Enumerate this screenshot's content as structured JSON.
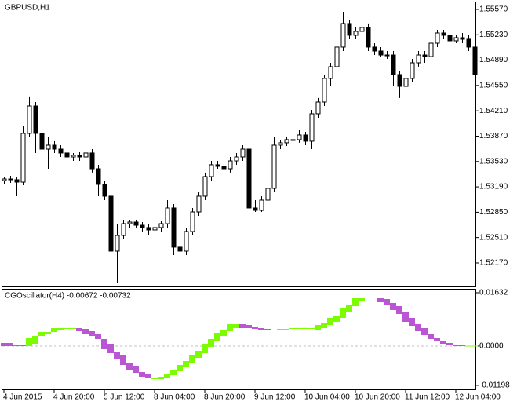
{
  "chart_data": [
    {
      "type": "candlestick",
      "title": "GBPUSD,H1",
      "ylim": [
        1.51854,
        1.55675
      ],
      "yticks": [
        {
          "value": 1.5557,
          "label": "1.55570"
        },
        {
          "value": 1.5523,
          "label": "1.55230"
        },
        {
          "value": 1.5489,
          "label": "1.54890"
        },
        {
          "value": 1.5455,
          "label": "1.54550"
        },
        {
          "value": 1.5421,
          "label": "1.54210"
        },
        {
          "value": 1.5387,
          "label": "1.53870"
        },
        {
          "value": 1.5353,
          "label": "1.53530"
        },
        {
          "value": 1.5319,
          "label": "1.53190"
        },
        {
          "value": 1.5285,
          "label": "1.52850"
        },
        {
          "value": 1.5251,
          "label": "1.52510"
        },
        {
          "value": 1.5217,
          "label": "1.52170"
        }
      ],
      "up_color": "#ffffff",
      "down_color": "#000000",
      "line_color": "#000000",
      "open": [
        1.53275,
        1.53296,
        1.53286,
        1.53254,
        1.53907,
        1.54275,
        1.53907,
        1.53696,
        1.53749,
        1.53696,
        1.53644,
        1.53591,
        1.53612,
        1.53591,
        1.53644,
        1.53433,
        1.53223,
        1.53065,
        1.52328,
        1.52538,
        1.52696,
        1.52717,
        1.52675,
        1.52644,
        1.52612,
        1.52644,
        1.52696,
        1.52907,
        1.52381,
        1.52328,
        1.52591,
        1.52854,
        1.53065,
        1.53328,
        1.53486,
        1.53465,
        1.53433,
        1.53538,
        1.53591,
        1.53696,
        1.52907,
        1.52875,
        1.53012,
        1.5317,
        1.53749,
        1.53781,
        1.53823,
        1.53823,
        1.53886,
        1.53802,
        1.5417,
        1.54328,
        1.54644,
        1.54802,
        1.55065,
        1.55381,
        1.55223,
        1.55275,
        1.55328,
        1.55065,
        1.55012,
        1.54959,
        1.54959,
        1.54696,
        1.54538,
        1.54644,
        1.54854,
        1.54959,
        1.54938,
        1.55117,
        1.55254,
        1.55223,
        1.55149,
        1.55191,
        1.5517,
        1.55065
      ],
      "high": [
        1.53328,
        1.53338,
        1.53328,
        1.54012,
        1.54402,
        1.54328,
        1.53959,
        1.53854,
        1.53802,
        1.53749,
        1.53696,
        1.53644,
        1.53654,
        1.53696,
        1.53696,
        1.53486,
        1.53275,
        1.53433,
        1.52696,
        1.52749,
        1.52749,
        1.52749,
        1.52717,
        1.52696,
        1.52696,
        1.52728,
        1.53012,
        1.52959,
        1.52538,
        1.52644,
        1.52907,
        1.53117,
        1.53381,
        1.53538,
        1.53538,
        1.53507,
        1.53591,
        1.53644,
        1.53749,
        1.53749,
        1.53012,
        1.53065,
        1.53223,
        1.53854,
        1.53823,
        1.53854,
        1.53886,
        1.53959,
        1.53928,
        1.54223,
        1.54381,
        1.54696,
        1.54854,
        1.55117,
        1.55538,
        1.55433,
        1.55328,
        1.55381,
        1.55381,
        1.55117,
        1.55065,
        1.55012,
        1.55012,
        1.54749,
        1.54696,
        1.54907,
        1.55012,
        1.55012,
        1.5517,
        1.55296,
        1.55296,
        1.55275,
        1.55223,
        1.55254,
        1.55223,
        1.55117
      ],
      "low": [
        1.53223,
        1.53244,
        1.53065,
        1.53212,
        1.53854,
        1.53644,
        1.53644,
        1.53433,
        1.53644,
        1.53591,
        1.53538,
        1.53538,
        1.53538,
        1.53538,
        1.53381,
        1.53065,
        1.53012,
        1.52065,
        1.51907,
        1.52486,
        1.52644,
        1.52644,
        1.52591,
        1.52538,
        1.52591,
        1.52591,
        1.52644,
        1.52275,
        1.52223,
        1.52275,
        1.52538,
        1.52802,
        1.53012,
        1.53275,
        1.53433,
        1.53381,
        1.53381,
        1.53486,
        1.53538,
        1.52696,
        1.52854,
        1.52854,
        1.52591,
        1.53117,
        1.53696,
        1.53738,
        1.53781,
        1.53781,
        1.53749,
        1.53696,
        1.54117,
        1.54275,
        1.54538,
        1.54696,
        1.55012,
        1.5517,
        1.5517,
        1.55223,
        1.55012,
        1.54959,
        1.54938,
        1.54907,
        1.54538,
        1.54381,
        1.54275,
        1.54591,
        1.54802,
        1.54854,
        1.54907,
        1.55065,
        1.5517,
        1.55117,
        1.55117,
        1.55117,
        1.55012,
        1.54644
      ],
      "close": [
        1.53296,
        1.53286,
        1.53254,
        1.53907,
        1.54275,
        1.53907,
        1.53696,
        1.53749,
        1.53696,
        1.53644,
        1.53591,
        1.53612,
        1.53591,
        1.53644,
        1.53433,
        1.53223,
        1.53065,
        1.52328,
        1.52538,
        1.52696,
        1.52717,
        1.52675,
        1.52644,
        1.52612,
        1.52644,
        1.52696,
        1.52907,
        1.52381,
        1.52328,
        1.52591,
        1.52854,
        1.53065,
        1.53328,
        1.53486,
        1.53465,
        1.53433,
        1.53538,
        1.53591,
        1.53696,
        1.52907,
        1.52875,
        1.53012,
        1.5317,
        1.53749,
        1.53781,
        1.53823,
        1.53823,
        1.53886,
        1.53802,
        1.5417,
        1.54328,
        1.54644,
        1.54802,
        1.55065,
        1.55381,
        1.55223,
        1.55275,
        1.55328,
        1.55065,
        1.55012,
        1.54959,
        1.54959,
        1.54696,
        1.54538,
        1.54644,
        1.54854,
        1.54959,
        1.54938,
        1.55117,
        1.55254,
        1.55223,
        1.55149,
        1.55191,
        1.5517,
        1.55065,
        1.54696
      ]
    },
    {
      "type": "band",
      "title": "CGOscillator(H4) -0.00672 -0.00732",
      "ylim": [
        -0.0132,
        0.01752
      ],
      "yticks": [
        0.01632,
        {
          "value": 0,
          "label": "0.0000"
        },
        -0.01198
      ],
      "zero_line": true,
      "zero_color": "#c0c0c0",
      "up_color": "#7cfc00",
      "down_color": "#ba55d3",
      "categories": [
        "4 Jun 2015",
        null,
        null,
        null,
        null,
        null,
        null,
        null,
        "4 Jun 20:00",
        null,
        null,
        null,
        null,
        null,
        null,
        null,
        "5 Jun 12:00",
        null,
        null,
        null,
        null,
        null,
        null,
        null,
        "8 Jun 04:00",
        null,
        null,
        null,
        null,
        null,
        null,
        null,
        "8 Jun 20:00",
        null,
        null,
        null,
        null,
        null,
        null,
        null,
        "9 Jun 12:00",
        null,
        null,
        null,
        null,
        null,
        null,
        null,
        "10 Jun 04:00",
        null,
        null,
        null,
        null,
        null,
        null,
        null,
        "10 Jun 20:00",
        null,
        null,
        null,
        null,
        null,
        null,
        null,
        "11 Jun 12:00",
        null,
        null,
        null,
        null,
        null,
        null,
        null,
        "12 Jun 04:00",
        null,
        null,
        null
      ],
      "series": [
        {
          "values": [
            0,
            0,
            0,
            0,
            0.00264,
            0.00312,
            0.00432,
            0.00432,
            0.00552,
            0.00552,
            0.00552,
            0.00552,
            0.00456,
            0.00384,
            0.00312,
            0.00216,
            -0.00096,
            -0.00216,
            -0.00408,
            -0.00576,
            -0.00744,
            -0.00816,
            -0.00936,
            -0.00984,
            -0.0096,
            -0.00936,
            -0.0084,
            -0.00744,
            -0.00576,
            -0.00456,
            -0.00264,
            -0.00144,
            0.00072,
            0.00216,
            0.00408,
            0.00504,
            0.00672,
            0.00672,
            0.00552,
            0.00552,
            0.00528,
            0.00504,
            0.0048,
            0.00504,
            0.00528,
            0.00528,
            0.00552,
            0.00552,
            0.00552,
            0.00552,
            0.00648,
            0.00696,
            0.00864,
            0.00936,
            0.01176,
            0.01272,
            0.01464,
            0.01464,
            0.01464,
            0.01464,
            0.01344,
            0.01272,
            0.01104,
            0.00984,
            0.00744,
            0.00624,
            0.00456,
            0.00336,
            0.00216,
            0.00144,
            0.00072,
            0.00024,
            0,
            0,
            0.00012,
            0.00012
          ]
        },
        {
          "values": [
            0.00096,
            0.00096,
            0.00048,
            0.00048,
            0,
            0.00072,
            0.00312,
            0.0036,
            0.00432,
            0.0048,
            0.00528,
            0.00528,
            0.00552,
            0.00528,
            0.00456,
            0.00384,
            0.00216,
            0.00072,
            -0.00168,
            -0.00264,
            -0.00504,
            -0.006,
            -0.00792,
            -0.00864,
            -0.01008,
            -0.01008,
            -0.0096,
            -0.00888,
            -0.00768,
            -0.00624,
            -0.00504,
            -0.0036,
            -0.00216,
            -0.00024,
            0.00144,
            0.00312,
            0.00456,
            0.00552,
            0.00672,
            0.00648,
            0.006,
            0.00552,
            0.00528,
            0.0048,
            0.00504,
            0.00504,
            0.00528,
            0.00528,
            0.00528,
            0.00528,
            0.00504,
            0.00552,
            0.00648,
            0.00744,
            0.00864,
            0.01032,
            0.01224,
            0.01368,
            0.01464,
            0.01464,
            0.01464,
            0.0144,
            0.0132,
            0.01224,
            0.01032,
            0.00864,
            0.00672,
            0.00552,
            0.00384,
            0.00264,
            0.00168,
            0.00096,
            0.00048,
            0.00024,
            -0.00012,
            -0.00012
          ]
        }
      ]
    }
  ]
}
